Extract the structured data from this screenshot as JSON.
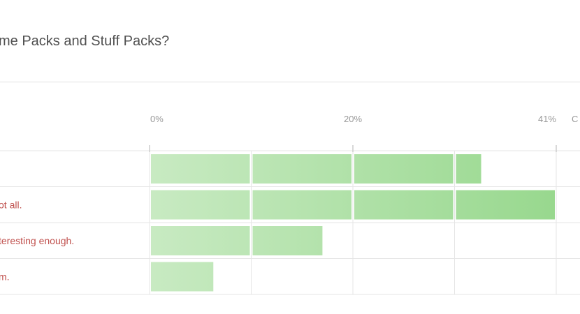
{
  "question": {
    "title": "me Packs and Stuff Packs?"
  },
  "chart_data": {
    "type": "bar",
    "orientation": "horizontal",
    "title": "me Packs and Stuff Packs?",
    "categories": [
      "",
      "ot all.",
      "teresting enough.",
      "m."
    ],
    "values": [
      33.5,
      41,
      17.5,
      6.5
    ],
    "x_ticks": [
      "0%",
      "20%",
      "41%"
    ],
    "x_ticks_partial": "C",
    "xlim": [
      0,
      41
    ],
    "grid": true,
    "colors": {
      "bar_light": "#c8eac2",
      "bar_dark": "#98d88e",
      "grid": "#e6e6e6",
      "label": "#c0504d",
      "tick": "#999999"
    }
  }
}
